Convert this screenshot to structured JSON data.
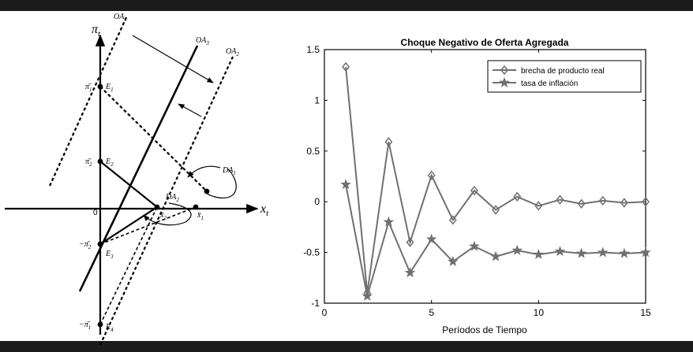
{
  "diagram": {
    "pi_axis_label": "π",
    "pi_axis_sub": "t",
    "x_axis_label": "x",
    "x_axis_sub": "t",
    "origin_label": "0",
    "curves": {
      "oa1": {
        "base": "OA",
        "sub": "1"
      },
      "oa3": {
        "base": "OA",
        "sub": "3"
      },
      "oa2": {
        "base": "OA",
        "sub": "2"
      },
      "da1": {
        "base": "DA",
        "sub": "1"
      },
      "da2": {
        "base": "DA",
        "sub": "2"
      }
    },
    "points": {
      "e1": {
        "base": "E",
        "sub": "1"
      },
      "e2": {
        "base": "E",
        "sub": "2"
      },
      "e3": {
        "base": "E",
        "sub": "3"
      },
      "e4": {
        "base": "E",
        "sub": "4"
      }
    },
    "levels": {
      "pi1": {
        "prefix": "",
        "base": "π̄",
        "sub": "1"
      },
      "pi2": {
        "prefix": "",
        "base": "π̄",
        "sub": "2"
      },
      "neg_pi2": {
        "prefix": "−",
        "base": "π̄",
        "sub": "2"
      },
      "neg_pi1": {
        "prefix": "−",
        "base": "π̄",
        "sub": "1"
      },
      "x1": {
        "base": "x̄",
        "sub": "1"
      },
      "x2": {
        "base": "x̄",
        "sub": "2"
      }
    }
  },
  "chart_data": {
    "type": "line",
    "title": "Choque Negativo de Oferta Agregada",
    "xlabel": "Períodos de Tiempo",
    "ylabel": "",
    "xlim": [
      0,
      15
    ],
    "ylim": [
      -1,
      1.5
    ],
    "xticks": [
      0,
      5,
      10,
      15
    ],
    "yticks": [
      -1,
      -0.5,
      0,
      0.5,
      1,
      1.5
    ],
    "x": [
      1,
      2,
      3,
      4,
      5,
      6,
      7,
      8,
      9,
      10,
      11,
      12,
      13,
      14,
      15
    ],
    "series": [
      {
        "name": "brecha de producto real",
        "marker": "diamond",
        "values": [
          1.33,
          -0.9,
          0.59,
          -0.4,
          0.26,
          -0.18,
          0.11,
          -0.08,
          0.05,
          -0.04,
          0.02,
          -0.02,
          0.01,
          -0.01,
          0.0
        ]
      },
      {
        "name": "tasa de inflación",
        "marker": "star",
        "values": [
          0.17,
          -0.93,
          -0.2,
          -0.7,
          -0.37,
          -0.59,
          -0.44,
          -0.54,
          -0.48,
          -0.52,
          -0.49,
          -0.51,
          -0.5,
          -0.51,
          -0.5
        ]
      }
    ],
    "grid": false,
    "legend_position": "top-right",
    "colors": {
      "line": "#707070",
      "axis": "#000000",
      "band": "#1c1c1c"
    }
  }
}
